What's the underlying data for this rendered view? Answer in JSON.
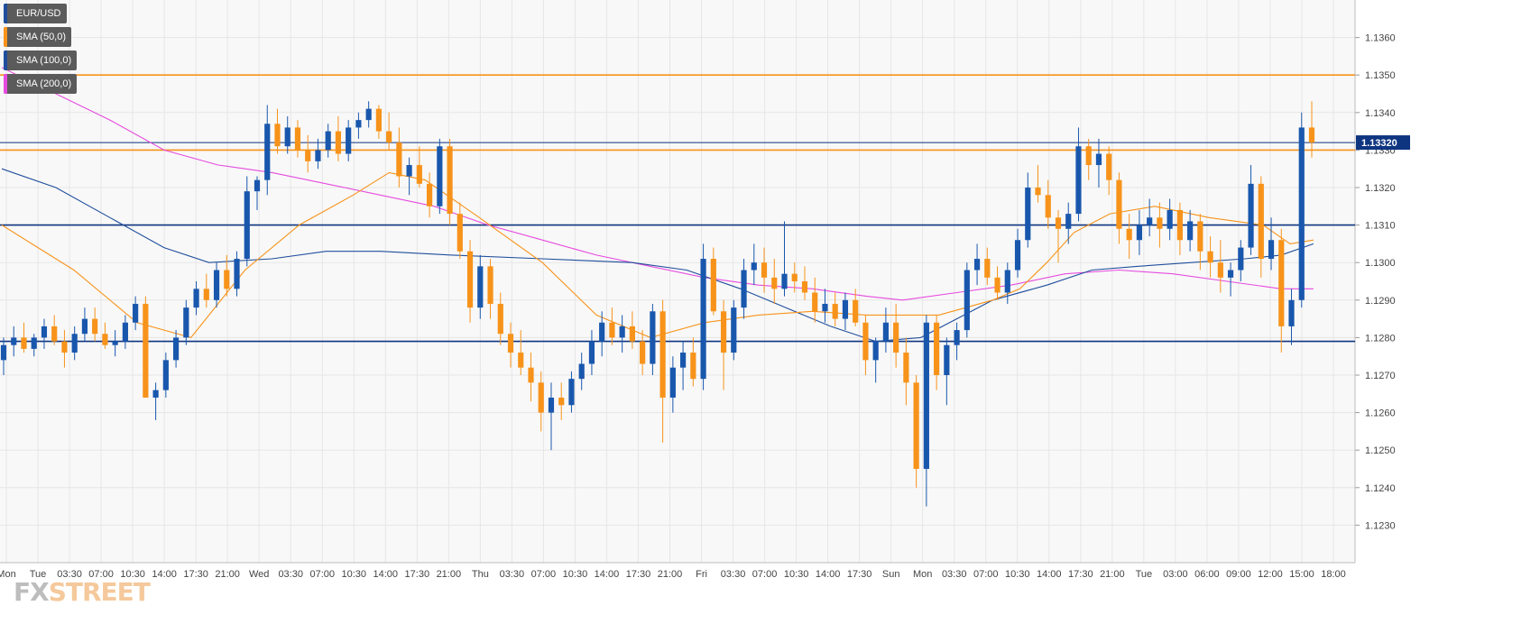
{
  "logo": {
    "fx": "FX",
    "street": "STREET"
  },
  "legend": [
    {
      "label": "EUR/USD",
      "color": "#1f4e9c"
    },
    {
      "label": "SMA (50,0)",
      "color": "#f7931a"
    },
    {
      "label": "SMA (100,0)",
      "color": "#1f4e9c"
    },
    {
      "label": "SMA (200,0)",
      "color": "#e64bdf"
    }
  ],
  "price_tag": {
    "value": "1.13320",
    "color": "#0d3580"
  },
  "colors": {
    "up_candle": "#1957ad",
    "down_candle": "#f7931a",
    "sma50": "#f7931a",
    "sma100": "#1f4e9c",
    "sma200": "#e64bdf",
    "level_orange": "#f7931a",
    "level_blue": "#0d3580",
    "grid": "#e6e6e6",
    "background": "#f8f8f8"
  },
  "chart_data": {
    "type": "candlestick",
    "symbol": "EUR/USD",
    "ylim": [
      1.122,
      1.137
    ],
    "grid": true,
    "legend_position": "top-left",
    "y_ticks": [
      "1.1230",
      "1.1240",
      "1.1250",
      "1.1260",
      "1.1270",
      "1.1280",
      "1.1290",
      "1.1300",
      "1.1310",
      "1.1320",
      "1.1330",
      "1.1340",
      "1.1350",
      "1.1360"
    ],
    "x_ticks": [
      "Mon",
      "Tue",
      "03:30",
      "07:00",
      "10:30",
      "14:00",
      "17:30",
      "21:00",
      "Wed",
      "03:30",
      "07:00",
      "10:30",
      "14:00",
      "17:30",
      "21:00",
      "Thu",
      "03:30",
      "07:00",
      "10:30",
      "14:00",
      "17:30",
      "21:00",
      "Fri",
      "03:30",
      "07:00",
      "10:30",
      "14:00",
      "17:30",
      "Sun",
      "Mon",
      "03:30",
      "07:00",
      "10:30",
      "14:00",
      "17:30",
      "21:00",
      "Tue",
      "03:00",
      "06:00",
      "09:00",
      "12:00",
      "15:00",
      "18:00"
    ],
    "horizontal_levels": [
      {
        "value": 1.135,
        "color": "orange"
      },
      {
        "value": 1.133,
        "color": "orange"
      },
      {
        "value": 1.1332,
        "color": "blue",
        "label": "1.13320"
      },
      {
        "value": 1.131,
        "color": "blue"
      },
      {
        "value": 1.1279,
        "color": "blue"
      }
    ],
    "candles_ohlc": [
      [
        1.1274,
        1.128,
        1.127,
        1.1278
      ],
      [
        1.1278,
        1.1283,
        1.1275,
        1.128
      ],
      [
        1.128,
        1.1284,
        1.1276,
        1.1277
      ],
      [
        1.1277,
        1.1281,
        1.1275,
        1.128
      ],
      [
        1.128,
        1.1285,
        1.1277,
        1.1283
      ],
      [
        1.1283,
        1.1286,
        1.1278,
        1.1279
      ],
      [
        1.1279,
        1.1282,
        1.1272,
        1.1276
      ],
      [
        1.1276,
        1.1283,
        1.1274,
        1.1281
      ],
      [
        1.1281,
        1.1288,
        1.1279,
        1.1285
      ],
      [
        1.1285,
        1.1288,
        1.1279,
        1.1281
      ],
      [
        1.1281,
        1.1284,
        1.1277,
        1.1278
      ],
      [
        1.1278,
        1.1282,
        1.1275,
        1.1279
      ],
      [
        1.1279,
        1.1286,
        1.1277,
        1.1284
      ],
      [
        1.1284,
        1.1291,
        1.1282,
        1.1289
      ],
      [
        1.1289,
        1.1291,
        1.127,
        1.1264
      ],
      [
        1.1264,
        1.1268,
        1.1258,
        1.1266
      ],
      [
        1.1266,
        1.1276,
        1.1264,
        1.1274
      ],
      [
        1.1274,
        1.1282,
        1.1272,
        1.128
      ],
      [
        1.128,
        1.129,
        1.1278,
        1.1288
      ],
      [
        1.1288,
        1.1295,
        1.1286,
        1.1293
      ],
      [
        1.1293,
        1.1297,
        1.1288,
        1.129
      ],
      [
        1.129,
        1.13,
        1.1288,
        1.1298
      ],
      [
        1.1298,
        1.1302,
        1.1291,
        1.1293
      ],
      [
        1.1293,
        1.1303,
        1.1291,
        1.1301
      ],
      [
        1.1301,
        1.1323,
        1.1299,
        1.1319
      ],
      [
        1.1319,
        1.1323,
        1.1314,
        1.1322
      ],
      [
        1.1322,
        1.1342,
        1.1318,
        1.1337
      ],
      [
        1.1337,
        1.1341,
        1.1329,
        1.1331
      ],
      [
        1.1331,
        1.1339,
        1.1329,
        1.1336
      ],
      [
        1.1336,
        1.1338,
        1.1328,
        1.133
      ],
      [
        1.133,
        1.1334,
        1.1324,
        1.1327
      ],
      [
        1.1327,
        1.1333,
        1.1325,
        1.133
      ],
      [
        1.133,
        1.1337,
        1.1328,
        1.1335
      ],
      [
        1.1335,
        1.1339,
        1.1327,
        1.1329
      ],
      [
        1.1329,
        1.1338,
        1.1327,
        1.1336
      ],
      [
        1.1336,
        1.134,
        1.1333,
        1.1338
      ],
      [
        1.1338,
        1.1343,
        1.1336,
        1.1341
      ],
      [
        1.1341,
        1.1342,
        1.1333,
        1.1335
      ],
      [
        1.1335,
        1.134,
        1.133,
        1.1332
      ],
      [
        1.1332,
        1.1336,
        1.132,
        1.1323
      ],
      [
        1.1323,
        1.1328,
        1.1318,
        1.1326
      ],
      [
        1.1326,
        1.1331,
        1.132,
        1.1321
      ],
      [
        1.1321,
        1.1324,
        1.1312,
        1.1315
      ],
      [
        1.1315,
        1.1333,
        1.1313,
        1.1331
      ],
      [
        1.1331,
        1.1333,
        1.131,
        1.1313
      ],
      [
        1.1313,
        1.1316,
        1.1301,
        1.1303
      ],
      [
        1.1303,
        1.1306,
        1.1284,
        1.1288
      ],
      [
        1.1288,
        1.1302,
        1.1285,
        1.1299
      ],
      [
        1.1299,
        1.1301,
        1.1285,
        1.1289
      ],
      [
        1.1289,
        1.1292,
        1.1278,
        1.1281
      ],
      [
        1.1281,
        1.1284,
        1.1272,
        1.1276
      ],
      [
        1.1276,
        1.1282,
        1.127,
        1.1272
      ],
      [
        1.1272,
        1.1276,
        1.1263,
        1.1268
      ],
      [
        1.1268,
        1.1271,
        1.1255,
        1.126
      ],
      [
        1.126,
        1.1268,
        1.125,
        1.1264
      ],
      [
        1.1264,
        1.1268,
        1.1258,
        1.1262
      ],
      [
        1.1262,
        1.1271,
        1.126,
        1.1269
      ],
      [
        1.1269,
        1.1276,
        1.1266,
        1.1273
      ],
      [
        1.1273,
        1.1282,
        1.127,
        1.1279
      ],
      [
        1.1279,
        1.1287,
        1.1275,
        1.1284
      ],
      [
        1.1284,
        1.1288,
        1.1278,
        1.128
      ],
      [
        1.128,
        1.1286,
        1.1276,
        1.1283
      ],
      [
        1.1283,
        1.1287,
        1.1277,
        1.1279
      ],
      [
        1.1279,
        1.1282,
        1.127,
        1.1273
      ],
      [
        1.1273,
        1.1289,
        1.127,
        1.1287
      ],
      [
        1.1287,
        1.129,
        1.1252,
        1.1264
      ],
      [
        1.1264,
        1.1275,
        1.126,
        1.1272
      ],
      [
        1.1272,
        1.1279,
        1.1266,
        1.1276
      ],
      [
        1.1276,
        1.128,
        1.1267,
        1.1269
      ],
      [
        1.1269,
        1.1305,
        1.1266,
        1.1301
      ],
      [
        1.1301,
        1.1304,
        1.1286,
        1.1287
      ],
      [
        1.1287,
        1.129,
        1.1266,
        1.1276
      ],
      [
        1.1276,
        1.129,
        1.1274,
        1.1288
      ],
      [
        1.1288,
        1.1301,
        1.1285,
        1.1298
      ],
      [
        1.1298,
        1.1305,
        1.1294,
        1.13
      ],
      [
        1.13,
        1.1304,
        1.1292,
        1.1296
      ],
      [
        1.1296,
        1.1301,
        1.1289,
        1.1293
      ],
      [
        1.1293,
        1.1311,
        1.1291,
        1.1297
      ],
      [
        1.1297,
        1.13,
        1.1292,
        1.1295
      ],
      [
        1.1295,
        1.1299,
        1.129,
        1.1292
      ],
      [
        1.1292,
        1.1296,
        1.1284,
        1.1287
      ],
      [
        1.1287,
        1.1293,
        1.1284,
        1.1289
      ],
      [
        1.1289,
        1.1292,
        1.1283,
        1.1285
      ],
      [
        1.1285,
        1.1292,
        1.1282,
        1.129
      ],
      [
        1.129,
        1.1293,
        1.1283,
        1.1284
      ],
      [
        1.1284,
        1.1286,
        1.127,
        1.1274
      ],
      [
        1.1274,
        1.128,
        1.1268,
        1.1279
      ],
      [
        1.1279,
        1.1288,
        1.1276,
        1.1284
      ],
      [
        1.1284,
        1.1289,
        1.1272,
        1.1276
      ],
      [
        1.1276,
        1.128,
        1.1262,
        1.1268
      ],
      [
        1.1268,
        1.127,
        1.124,
        1.1245
      ],
      [
        1.1245,
        1.1286,
        1.1235,
        1.1284
      ],
      [
        1.1284,
        1.1286,
        1.1266,
        1.127
      ],
      [
        1.127,
        1.128,
        1.1262,
        1.1278
      ],
      [
        1.1278,
        1.1284,
        1.1274,
        1.1282
      ],
      [
        1.1282,
        1.13,
        1.128,
        1.1298
      ],
      [
        1.1298,
        1.1305,
        1.1294,
        1.1301
      ],
      [
        1.1301,
        1.1304,
        1.1294,
        1.1296
      ],
      [
        1.1296,
        1.1299,
        1.129,
        1.1292
      ],
      [
        1.1292,
        1.13,
        1.1289,
        1.1298
      ],
      [
        1.1298,
        1.1309,
        1.1296,
        1.1306
      ],
      [
        1.1306,
        1.1324,
        1.1304,
        1.132
      ],
      [
        1.132,
        1.1326,
        1.1316,
        1.1318
      ],
      [
        1.1318,
        1.1322,
        1.1309,
        1.1312
      ],
      [
        1.1312,
        1.1314,
        1.13,
        1.1309
      ],
      [
        1.1309,
        1.1316,
        1.1305,
        1.1313
      ],
      [
        1.1313,
        1.1336,
        1.1311,
        1.1331
      ],
      [
        1.1331,
        1.1333,
        1.1322,
        1.1326
      ],
      [
        1.1326,
        1.1333,
        1.132,
        1.1329
      ],
      [
        1.1329,
        1.1331,
        1.1318,
        1.1322
      ],
      [
        1.1322,
        1.1324,
        1.1305,
        1.1309
      ],
      [
        1.1309,
        1.1313,
        1.1301,
        1.1306
      ],
      [
        1.1306,
        1.1314,
        1.1302,
        1.131
      ],
      [
        1.131,
        1.1317,
        1.1307,
        1.1312
      ],
      [
        1.1312,
        1.1316,
        1.1304,
        1.1309
      ],
      [
        1.1309,
        1.1317,
        1.1306,
        1.1314
      ],
      [
        1.1314,
        1.1316,
        1.1302,
        1.1306
      ],
      [
        1.1306,
        1.1314,
        1.1303,
        1.1311
      ],
      [
        1.1311,
        1.1313,
        1.1298,
        1.1303
      ],
      [
        1.1303,
        1.1307,
        1.1296,
        1.13
      ],
      [
        1.13,
        1.1306,
        1.1292,
        1.1296
      ],
      [
        1.1296,
        1.13,
        1.1291,
        1.1298
      ],
      [
        1.1298,
        1.1306,
        1.1295,
        1.1304
      ],
      [
        1.1304,
        1.1326,
        1.1302,
        1.1321
      ],
      [
        1.1321,
        1.1323,
        1.1296,
        1.1301
      ],
      [
        1.1301,
        1.1312,
        1.1298,
        1.1306
      ],
      [
        1.1306,
        1.1309,
        1.1276,
        1.1283
      ],
      [
        1.1283,
        1.1293,
        1.1278,
        1.129
      ],
      [
        1.129,
        1.134,
        1.1288,
        1.1336
      ],
      [
        1.1336,
        1.1343,
        1.1328,
        1.1332
      ]
    ],
    "sma50": [
      [
        0,
        1.131
      ],
      [
        80,
        1.1298
      ],
      [
        150,
        1.1284
      ],
      [
        210,
        1.128
      ],
      [
        270,
        1.1298
      ],
      [
        330,
        1.131
      ],
      [
        390,
        1.1318
      ],
      [
        430,
        1.1324
      ],
      [
        470,
        1.1322
      ],
      [
        530,
        1.1312
      ],
      [
        600,
        1.13
      ],
      [
        660,
        1.1286
      ],
      [
        720,
        1.128
      ],
      [
        780,
        1.1284
      ],
      [
        840,
        1.1286
      ],
      [
        900,
        1.1287
      ],
      [
        960,
        1.1286
      ],
      [
        1040,
        1.1286
      ],
      [
        1100,
        1.129
      ],
      [
        1130,
        1.1293
      ],
      [
        1160,
        1.13
      ],
      [
        1190,
        1.1308
      ],
      [
        1230,
        1.1313
      ],
      [
        1280,
        1.1315
      ],
      [
        1340,
        1.1312
      ],
      [
        1400,
        1.131
      ],
      [
        1430,
        1.1305
      ],
      [
        1456,
        1.1306
      ]
    ],
    "sma100": [
      [
        0,
        1.1325
      ],
      [
        60,
        1.132
      ],
      [
        120,
        1.1312
      ],
      [
        180,
        1.1304
      ],
      [
        230,
        1.13
      ],
      [
        300,
        1.1301
      ],
      [
        360,
        1.1303
      ],
      [
        420,
        1.1303
      ],
      [
        500,
        1.1302
      ],
      [
        600,
        1.1301
      ],
      [
        700,
        1.13
      ],
      [
        760,
        1.1298
      ],
      [
        820,
        1.1293
      ],
      [
        870,
        1.1288
      ],
      [
        920,
        1.1283
      ],
      [
        970,
        1.1279
      ],
      [
        1020,
        1.128
      ],
      [
        1060,
        1.1285
      ],
      [
        1100,
        1.129
      ],
      [
        1160,
        1.1294
      ],
      [
        1210,
        1.1298
      ],
      [
        1260,
        1.1299
      ],
      [
        1320,
        1.13
      ],
      [
        1380,
        1.1301
      ],
      [
        1420,
        1.1302
      ],
      [
        1456,
        1.1305
      ]
    ],
    "sma200": [
      [
        0,
        1.1352
      ],
      [
        60,
        1.1345
      ],
      [
        120,
        1.1338
      ],
      [
        180,
        1.133
      ],
      [
        240,
        1.1326
      ],
      [
        300,
        1.1324
      ],
      [
        360,
        1.1321
      ],
      [
        420,
        1.1318
      ],
      [
        480,
        1.1315
      ],
      [
        540,
        1.131
      ],
      [
        600,
        1.1306
      ],
      [
        660,
        1.1302
      ],
      [
        720,
        1.1299
      ],
      [
        780,
        1.1296
      ],
      [
        840,
        1.1294
      ],
      [
        900,
        1.1293
      ],
      [
        960,
        1.1291
      ],
      [
        1000,
        1.129
      ],
      [
        1060,
        1.1292
      ],
      [
        1120,
        1.1294
      ],
      [
        1180,
        1.1297
      ],
      [
        1240,
        1.1298
      ],
      [
        1300,
        1.1297
      ],
      [
        1360,
        1.1295
      ],
      [
        1420,
        1.1293
      ],
      [
        1456,
        1.1293
      ]
    ]
  }
}
